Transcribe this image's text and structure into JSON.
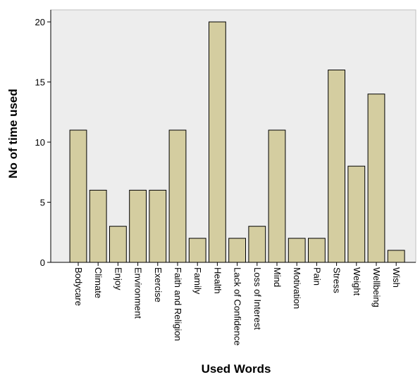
{
  "chart_data": {
    "type": "bar",
    "xlabel": "Used Words",
    "ylabel": "No of time used",
    "categories": [
      "Bodycare",
      "Climate",
      "Enjoy",
      "Environment",
      "Exercise",
      "Faith and Religion",
      "Family",
      "Health",
      "Lack of Confidence",
      "Loss of Interest",
      "Mind",
      "Motivation",
      "Pain",
      "Stress",
      "Weight",
      "Wellbeing",
      "Wish"
    ],
    "values": [
      11,
      6,
      3,
      6,
      6,
      11,
      2,
      20,
      2,
      3,
      11,
      2,
      2,
      16,
      8,
      14,
      1
    ],
    "yticks": [
      0,
      5,
      10,
      15,
      20
    ],
    "ylim": [
      0,
      21
    ],
    "grid": false,
    "colors": {
      "bar_fill": "#d4cda0",
      "bar_stroke": "#000000",
      "plot_background": "#ededed"
    }
  }
}
